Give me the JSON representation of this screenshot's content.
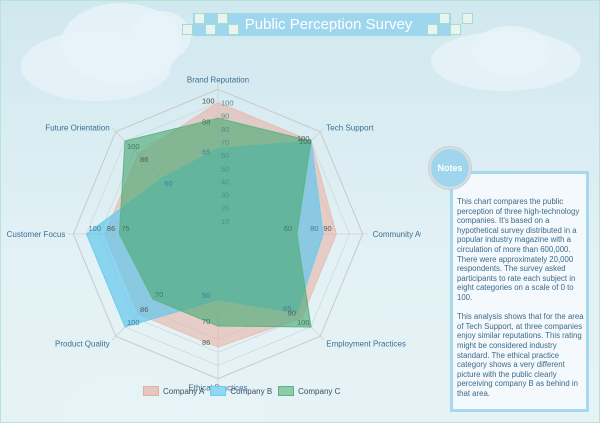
{
  "title": "Public Perception Survey",
  "notes": {
    "badge": "Notes",
    "paragraph1": "This chart compares the public perception of three high-technology companies. It's based on a hypothetical survey distributed in a popular industry magazine with a circulation of more than 600,000. There were approximately 20,000 respondents. The survey asked participants to rate each subject in eight categories on a scale of 0 to 100.",
    "paragraph2": "This analysis shows that for the area of Tech Support, at three companies enjoy similar reputations. This rating might be considered industry standard. The ethical practice category shows a very different picture with the public clearly perceiving company B as behind in that area."
  },
  "chart_data": {
    "type": "radar",
    "title": "Public Perception Survey",
    "categories": [
      "Brand Reputation",
      "Tech Support",
      "Community Awareness",
      "Employment Practices",
      "Ethical Practices",
      "Product Quality",
      "Customer Focus",
      "Future Orientation"
    ],
    "scale_ticks": [
      10,
      20,
      30,
      40,
      50,
      60,
      70,
      80,
      90,
      100
    ],
    "range": [
      0,
      110
    ],
    "series": [
      {
        "name": "Company A",
        "color": "#e8bfb6",
        "values": [
          100,
          100,
          90,
          90,
          86,
          86,
          86,
          86
        ]
      },
      {
        "name": "Company B",
        "color": "#6fcdee",
        "values": [
          65,
          100,
          80,
          85,
          50,
          100,
          100,
          60
        ]
      },
      {
        "name": "Company C",
        "color": "#5fb486",
        "values": [
          88,
          100,
          60,
          100,
          70,
          70,
          75,
          100
        ]
      }
    ],
    "legend_position": "bottom"
  }
}
